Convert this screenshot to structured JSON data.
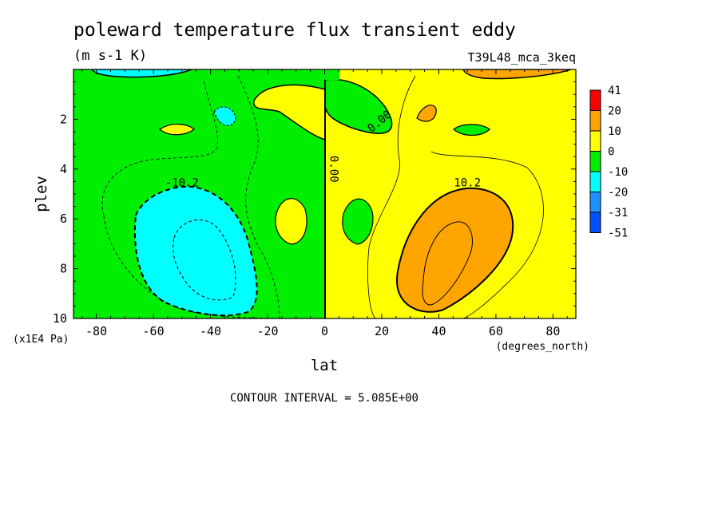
{
  "chart_data": {
    "type": "heatmap",
    "title": "poleward temperature flux transient eddy",
    "units": "(m s-1 K)",
    "run_label": "T39L48_mca_3keq",
    "xlabel": "lat",
    "x_units": "(degrees_north)",
    "ylabel": "plev",
    "y_units": "(x1E4 Pa)",
    "xlim": [
      -88,
      88
    ],
    "ylim": [
      10,
      0
    ],
    "x_ticks": [
      -80,
      -60,
      -40,
      -20,
      0,
      20,
      40,
      60,
      80
    ],
    "x_tick_labels": [
      "-80",
      "-60",
      "-40",
      "-20",
      "0",
      "20",
      "40",
      "60",
      "80"
    ],
    "y_ticks": [
      2,
      4,
      6,
      8,
      10
    ],
    "y_tick_labels": [
      "2",
      "4",
      "6",
      "8",
      "10"
    ],
    "contour_labels": [
      {
        "text": "-10.2",
        "x": -50,
        "y": 4.7
      },
      {
        "text": "10.2",
        "x": 50,
        "y": 4.7
      },
      {
        "text": "0.00",
        "x": 2,
        "y": 4.0
      },
      {
        "text": "0.00",
        "x": 20,
        "y": 2.2
      }
    ],
    "contour_interval_text": "CONTOUR INTERVAL = 5.085E+00",
    "legend": {
      "labels": [
        "41",
        "20",
        "10",
        "0",
        "-10",
        "-20",
        "-31",
        "-51"
      ],
      "colors": [
        "#ff0000",
        "#ffa500",
        "#ffff00",
        "#00ee00",
        "#00ffff",
        "#1e90ff",
        "#0050ff"
      ]
    },
    "level_colors": {
      "lt_-20": "#1e90ff",
      "-20_-10": "#00ffff",
      "-10_0": "#00ee00",
      "0_10": "#ffff00",
      "10_20": "#ffa500"
    }
  }
}
